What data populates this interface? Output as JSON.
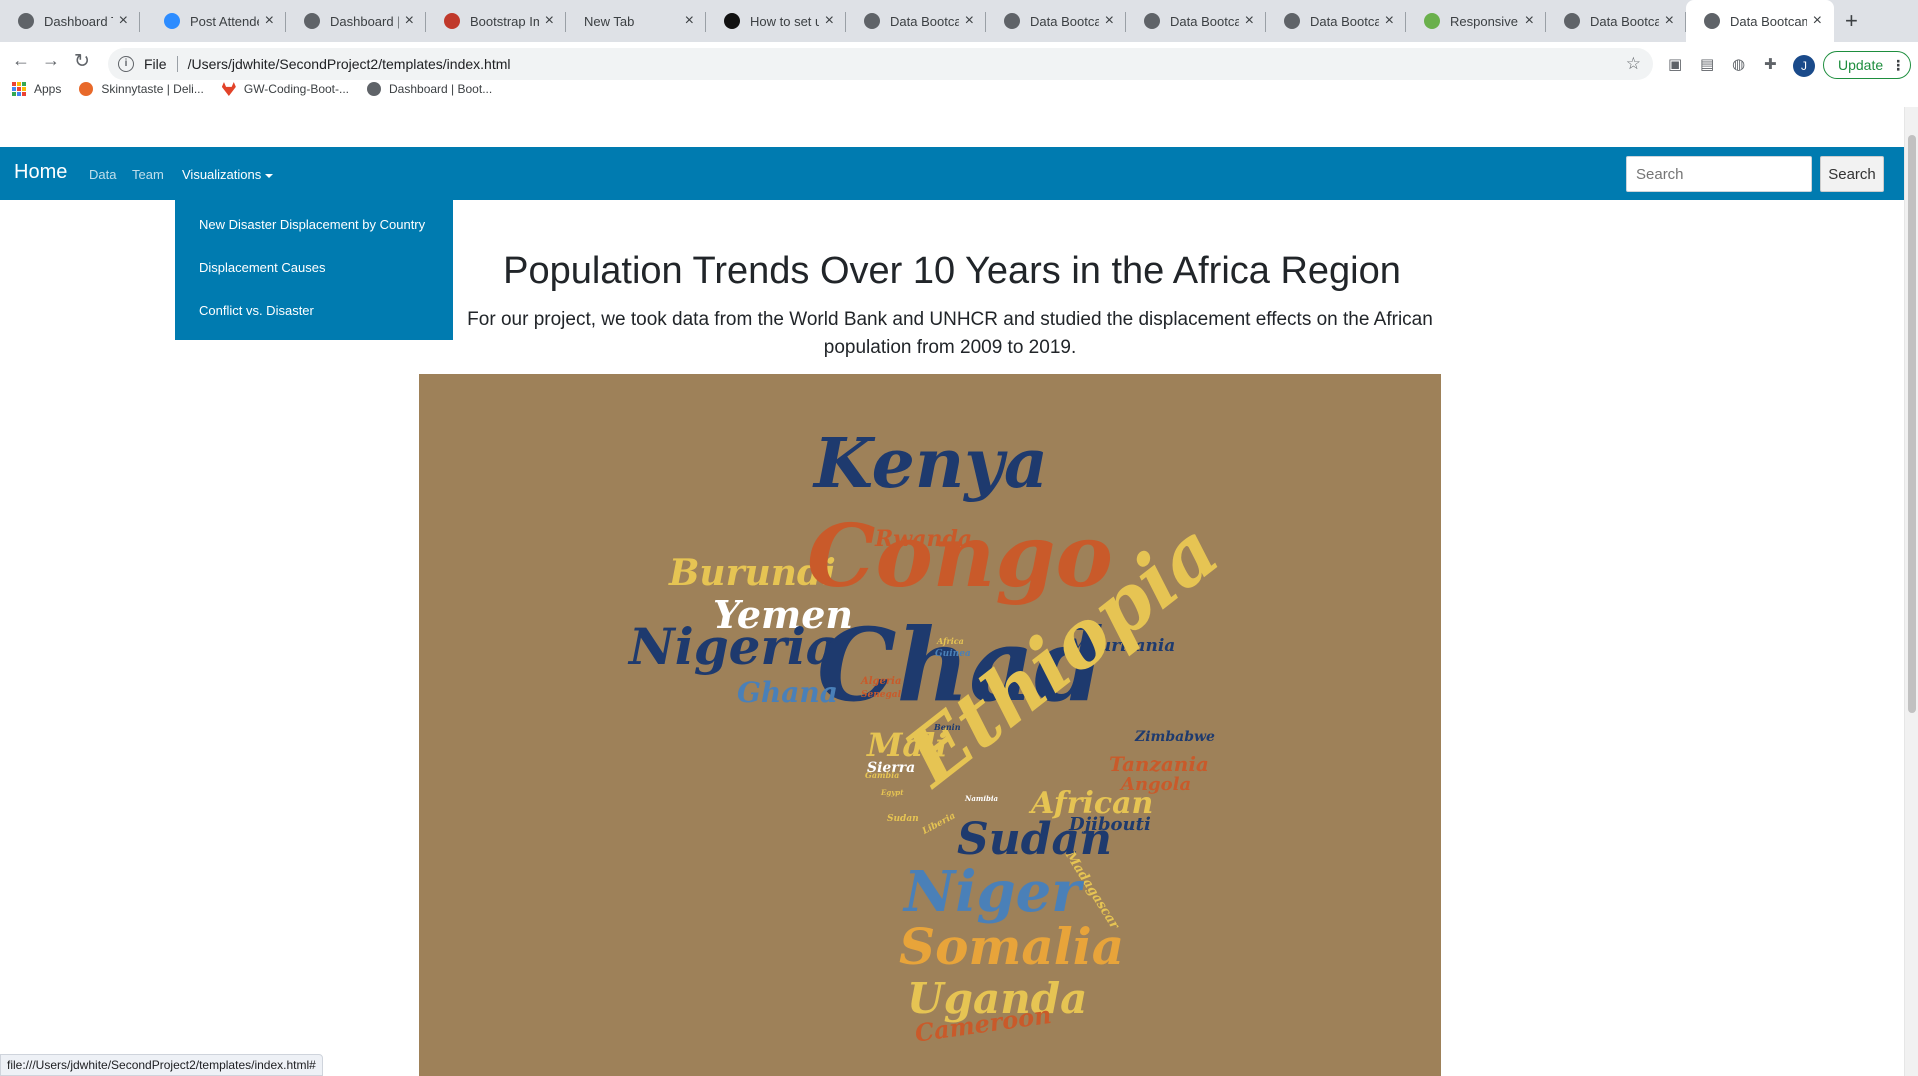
{
  "browser": {
    "tabs": [
      {
        "title": "Dashboard Te",
        "color": "#5f6368"
      },
      {
        "title": "Post Attende",
        "color": "#2d8cff"
      },
      {
        "title": "Dashboard | E",
        "color": "#5f6368"
      },
      {
        "title": "Bootstrap Ima",
        "color": "#c0392b"
      },
      {
        "title": "New Tab",
        "color": ""
      },
      {
        "title": "How to set up",
        "color": "#111111"
      },
      {
        "title": "Data Bootcam",
        "color": "#5f6368"
      },
      {
        "title": "Data Bootcam",
        "color": "#5f6368"
      },
      {
        "title": "Data Bootcam",
        "color": "#5f6368"
      },
      {
        "title": "Data Bootcam",
        "color": "#5f6368"
      },
      {
        "title": "Responsive W",
        "color": "#6ab04c"
      },
      {
        "title": "Data Bootcam",
        "color": "#5f6368"
      },
      {
        "title": "Data Bootcam",
        "color": "#5f6368"
      }
    ],
    "address": {
      "scheme_label": "File",
      "url": "/Users/jdwhite/SecondProject2/templates/index.html"
    },
    "avatar_letter": "J",
    "update_label": "Update",
    "bookmarks": [
      {
        "label": "Apps"
      },
      {
        "label": "Skinnytaste | Deli..."
      },
      {
        "label": "GW-Coding-Boot-..."
      },
      {
        "label": "Dashboard | Boot..."
      }
    ],
    "status_url": "file:///Users/jdwhite/SecondProject2/templates/index.html#"
  },
  "navbar": {
    "brand": "Home",
    "links": [
      "Data",
      "Team",
      "Visualizations"
    ],
    "search_placeholder": "Search",
    "search_button": "Search"
  },
  "dropdown": {
    "items": [
      "New Disaster Displacement by Country",
      "Displacement Causes",
      "Conflict vs. Disaster"
    ]
  },
  "main": {
    "title": "Population Trends Over 10 Years in the Africa Region",
    "lead": "For our project, we took data from the World Bank and UNHCR and studied the displacement effects on the African population from 2009 to 2019."
  },
  "wordcloud": {
    "background": "#9e8159",
    "words": [
      {
        "text": "Kenya",
        "color": "#1e3a6e"
      },
      {
        "text": "Rwanda",
        "color": "#c95a2a"
      },
      {
        "text": "Burundi",
        "color": "#e6c453"
      },
      {
        "text": "Congo",
        "color": "#c95a2a"
      },
      {
        "text": "Yemen",
        "color": "#ffffff"
      },
      {
        "text": "Nigeria",
        "color": "#1e3a6e"
      },
      {
        "text": "Chad",
        "color": "#1e3a6e"
      },
      {
        "text": "Mauritania",
        "color": "#1e3a6e"
      },
      {
        "text": "Ghana",
        "color": "#4a80b8"
      },
      {
        "text": "Ethiopia",
        "color": "#e6c453"
      },
      {
        "text": "Zimbabwe",
        "color": "#1e3a6e"
      },
      {
        "text": "Tanzania",
        "color": "#c95a2a"
      },
      {
        "text": "Mali",
        "color": "#e6c453"
      },
      {
        "text": "Angola",
        "color": "#c95a2a"
      },
      {
        "text": "Sierra",
        "color": "#ffffff"
      },
      {
        "text": "African",
        "color": "#e6c453"
      },
      {
        "text": "Djibouti",
        "color": "#1e3a6e"
      },
      {
        "text": "Sudan",
        "color": "#1e3a6e"
      },
      {
        "text": "Madagascar",
        "color": "#e6c453"
      },
      {
        "text": "Niger",
        "color": "#4a80b8"
      },
      {
        "text": "Somalia",
        "color": "#e8a43a"
      },
      {
        "text": "Uganda",
        "color": "#e6c453"
      },
      {
        "text": "Cameroon",
        "color": "#c95a2a"
      },
      {
        "text": "Algeria",
        "color": "#c95a2a"
      },
      {
        "text": "Senegal",
        "color": "#c95a2a"
      },
      {
        "text": "Benin",
        "color": "#1e3a6e"
      },
      {
        "text": "Gambia",
        "color": "#e6c453"
      },
      {
        "text": "Namibia",
        "color": "#ffffff"
      },
      {
        "text": "Africa",
        "color": "#e6c453"
      },
      {
        "text": "Guinea",
        "color": "#4a80b8"
      },
      {
        "text": "Sudan",
        "color": "#e6c453"
      },
      {
        "text": "Liberia",
        "color": "#e6c453"
      },
      {
        "text": "Egypt",
        "color": "#e6c453"
      }
    ]
  }
}
